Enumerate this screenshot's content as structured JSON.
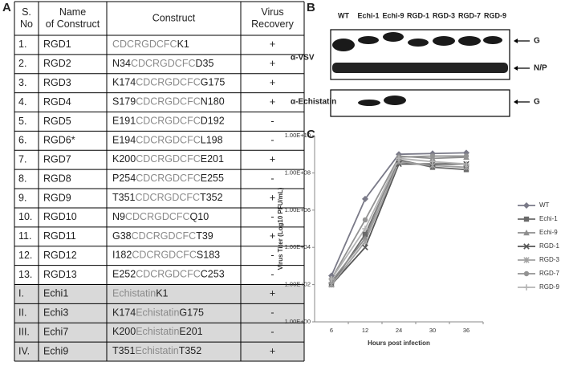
{
  "panels": {
    "a": "A",
    "b": "B",
    "c": "C"
  },
  "table": {
    "header": [
      [
        "S.",
        "No"
      ],
      [
        "Name",
        "of Construct"
      ],
      [
        "Construct"
      ],
      [
        "Virus",
        "Recovery"
      ]
    ],
    "rows": [
      {
        "no": "1.",
        "name": "RGD1",
        "construct": {
          "insert": "CDCRGDCFC",
          "after": "K1"
        },
        "recovery": "+"
      },
      {
        "no": "2.",
        "name": "RGD2",
        "construct": {
          "before": "N34",
          "insert": "CDCRGDCFC",
          "after": "D35"
        },
        "recovery": "+"
      },
      {
        "no": "3.",
        "name": "RGD3",
        "construct": {
          "before": "K174",
          "insert": "CDCRGDCFC",
          "after": "G175"
        },
        "recovery": "+"
      },
      {
        "no": "4.",
        "name": "RGD4",
        "construct": {
          "before": "S179",
          "insert": "CDCRGDCFC",
          "after": "N180"
        },
        "recovery": "+"
      },
      {
        "no": "5.",
        "name": "RGD5",
        "construct": {
          "before": "E191",
          "insert": "CDCRGDCFC",
          "after": "D192"
        },
        "recovery": "-"
      },
      {
        "no": "6.",
        "name": "RGD6*",
        "construct": {
          "before": "E194",
          "insert": "CDCRGDCFC",
          "after": "L198"
        },
        "recovery": "-"
      },
      {
        "no": "7.",
        "name": "RGD7",
        "construct": {
          "before": "K200",
          "insert": "CDCRGDCFC",
          "after": "E201"
        },
        "recovery": "+"
      },
      {
        "no": "8.",
        "name": "RGD8",
        "construct": {
          "before": "P254",
          "insert": "CDCRGDCFC",
          "after": "E255"
        },
        "recovery": "-"
      },
      {
        "no": "9.",
        "name": "RGD9",
        "construct": {
          "before": "T351",
          "insert": "CDCRGDCFC",
          "after": "T352"
        },
        "recovery": "+"
      },
      {
        "no": "10.",
        "name": "RGD10",
        "construct": {
          "before": "N9",
          "insert": "CDCRGDCFC",
          "after": "Q10"
        },
        "recovery": "-"
      },
      {
        "no": "11.",
        "name": "RGD11",
        "construct": {
          "before": "G38",
          "insert": "CDCRGDCFC",
          "after": "T39"
        },
        "recovery": "+"
      },
      {
        "no": "12.",
        "name": "RGD12",
        "construct": {
          "before": "I182",
          "insert": "CDCRGDCFC",
          "after": "S183"
        },
        "recovery": "-"
      },
      {
        "no": "13.",
        "name": "RGD13",
        "construct": {
          "before": "E252",
          "insert": "CDCRGDCFC",
          "after": "C253"
        },
        "recovery": "-"
      },
      {
        "no": "I.",
        "name": "Echi1",
        "construct": {
          "insert": "Echistatin",
          "after": "K1"
        },
        "recovery": "+",
        "shaded": true
      },
      {
        "no": "II.",
        "name": "Echi3",
        "construct": {
          "before": "K174",
          "insert": "Echistatin",
          "after": "G175"
        },
        "recovery": "-",
        "shaded": true
      },
      {
        "no": "III.",
        "name": "Echi7",
        "construct": {
          "before": "K200",
          "insert": "Echistatin",
          "after": "E201"
        },
        "recovery": "-",
        "shaded": true
      },
      {
        "no": "IV.",
        "name": "Echi9",
        "construct": {
          "before": "T351",
          "insert": "Echistatin",
          "after": "T352"
        },
        "recovery": "+",
        "shaded": true
      }
    ]
  },
  "blot": {
    "lanes": [
      "WT",
      "Echi-1",
      "Echi-9",
      "RGD-1",
      "RGD-3",
      "RGD-7",
      "RGD-9"
    ],
    "panels": [
      {
        "antibody": "α-VSV",
        "bands": [
          "G",
          "N/P"
        ]
      },
      {
        "antibody": "α-Echistatin",
        "bands": [
          "G"
        ]
      }
    ]
  },
  "chart_data": {
    "type": "line",
    "x_label": "Hours post infection",
    "y_label": "Virus Titer (Log10 PFU/mL)",
    "categories": [
      "6",
      "12",
      "24",
      "30",
      "36"
    ],
    "log_y": true,
    "ylim": [
      1,
      10000000000
    ],
    "yticks": [
      {
        "value": 1,
        "label": "1.00E+00"
      },
      {
        "value": 100,
        "label": "1.00E+02"
      },
      {
        "value": 10000,
        "label": "1.00E+04"
      },
      {
        "value": 1000000,
        "label": "1.00E+06"
      },
      {
        "value": 100000000,
        "label": "1.00E+08"
      },
      {
        "value": 10000000000,
        "label": "1.00E+10"
      }
    ],
    "grid": false,
    "legend": "right",
    "series": [
      {
        "name": "WT",
        "color": "#7a7a88",
        "marker": "diamond",
        "values": [
          300,
          4000000,
          1000000000,
          1100000000,
          1200000000
        ]
      },
      {
        "name": "Echi-1",
        "color": "#6a6a6a",
        "marker": "square",
        "values": [
          100,
          50000,
          500000000,
          200000000,
          150000000
        ]
      },
      {
        "name": "Echi-9",
        "color": "#8e8e8e",
        "marker": "triangle",
        "values": [
          150,
          30000,
          800000000,
          600000000,
          700000000
        ]
      },
      {
        "name": "RGD-1",
        "color": "#555555",
        "marker": "x",
        "values": [
          100,
          10000,
          300000000,
          300000000,
          300000000
        ]
      },
      {
        "name": "RGD-3",
        "color": "#a0a0a0",
        "marker": "star",
        "values": [
          100,
          20000,
          400000000,
          250000000,
          200000000
        ]
      },
      {
        "name": "RGD-7",
        "color": "#939393",
        "marker": "circle",
        "values": [
          200,
          300000,
          700000000,
          800000000,
          800000000
        ]
      },
      {
        "name": "RGD-9",
        "color": "#b4b4b4",
        "marker": "plus",
        "values": [
          200,
          100000,
          600000000,
          400000000,
          300000000
        ]
      }
    ]
  }
}
